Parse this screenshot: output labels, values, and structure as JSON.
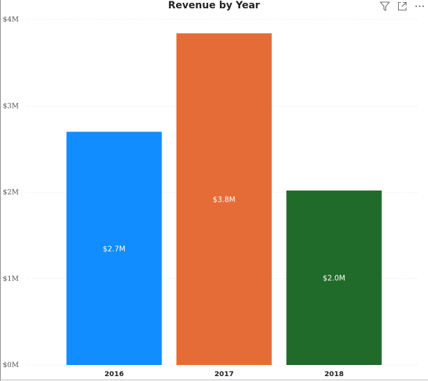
{
  "toolbar": {
    "icons": [
      "filter-icon",
      "focus-mode-icon",
      "more-options-icon"
    ]
  },
  "chart_data": {
    "type": "bar",
    "title": "Revenue by Year",
    "xlabel": "",
    "ylabel": "",
    "categories": [
      "2016",
      "2017",
      "2018"
    ],
    "values": [
      2.7,
      3.84,
      2.02
    ],
    "data_labels": [
      "$2.7M",
      "$3.8M",
      "$2.0M"
    ],
    "colors": [
      "#118dff",
      "#e66c37",
      "#216b2a"
    ],
    "ylim": [
      0,
      4
    ],
    "y_ticks": [
      {
        "value": 0,
        "label": "$0M"
      },
      {
        "value": 1,
        "label": "$1M"
      },
      {
        "value": 2,
        "label": "$2M"
      },
      {
        "value": 3,
        "label": "$3M"
      },
      {
        "value": 4,
        "label": "$4M"
      }
    ],
    "grid": true,
    "legend": "none"
  }
}
